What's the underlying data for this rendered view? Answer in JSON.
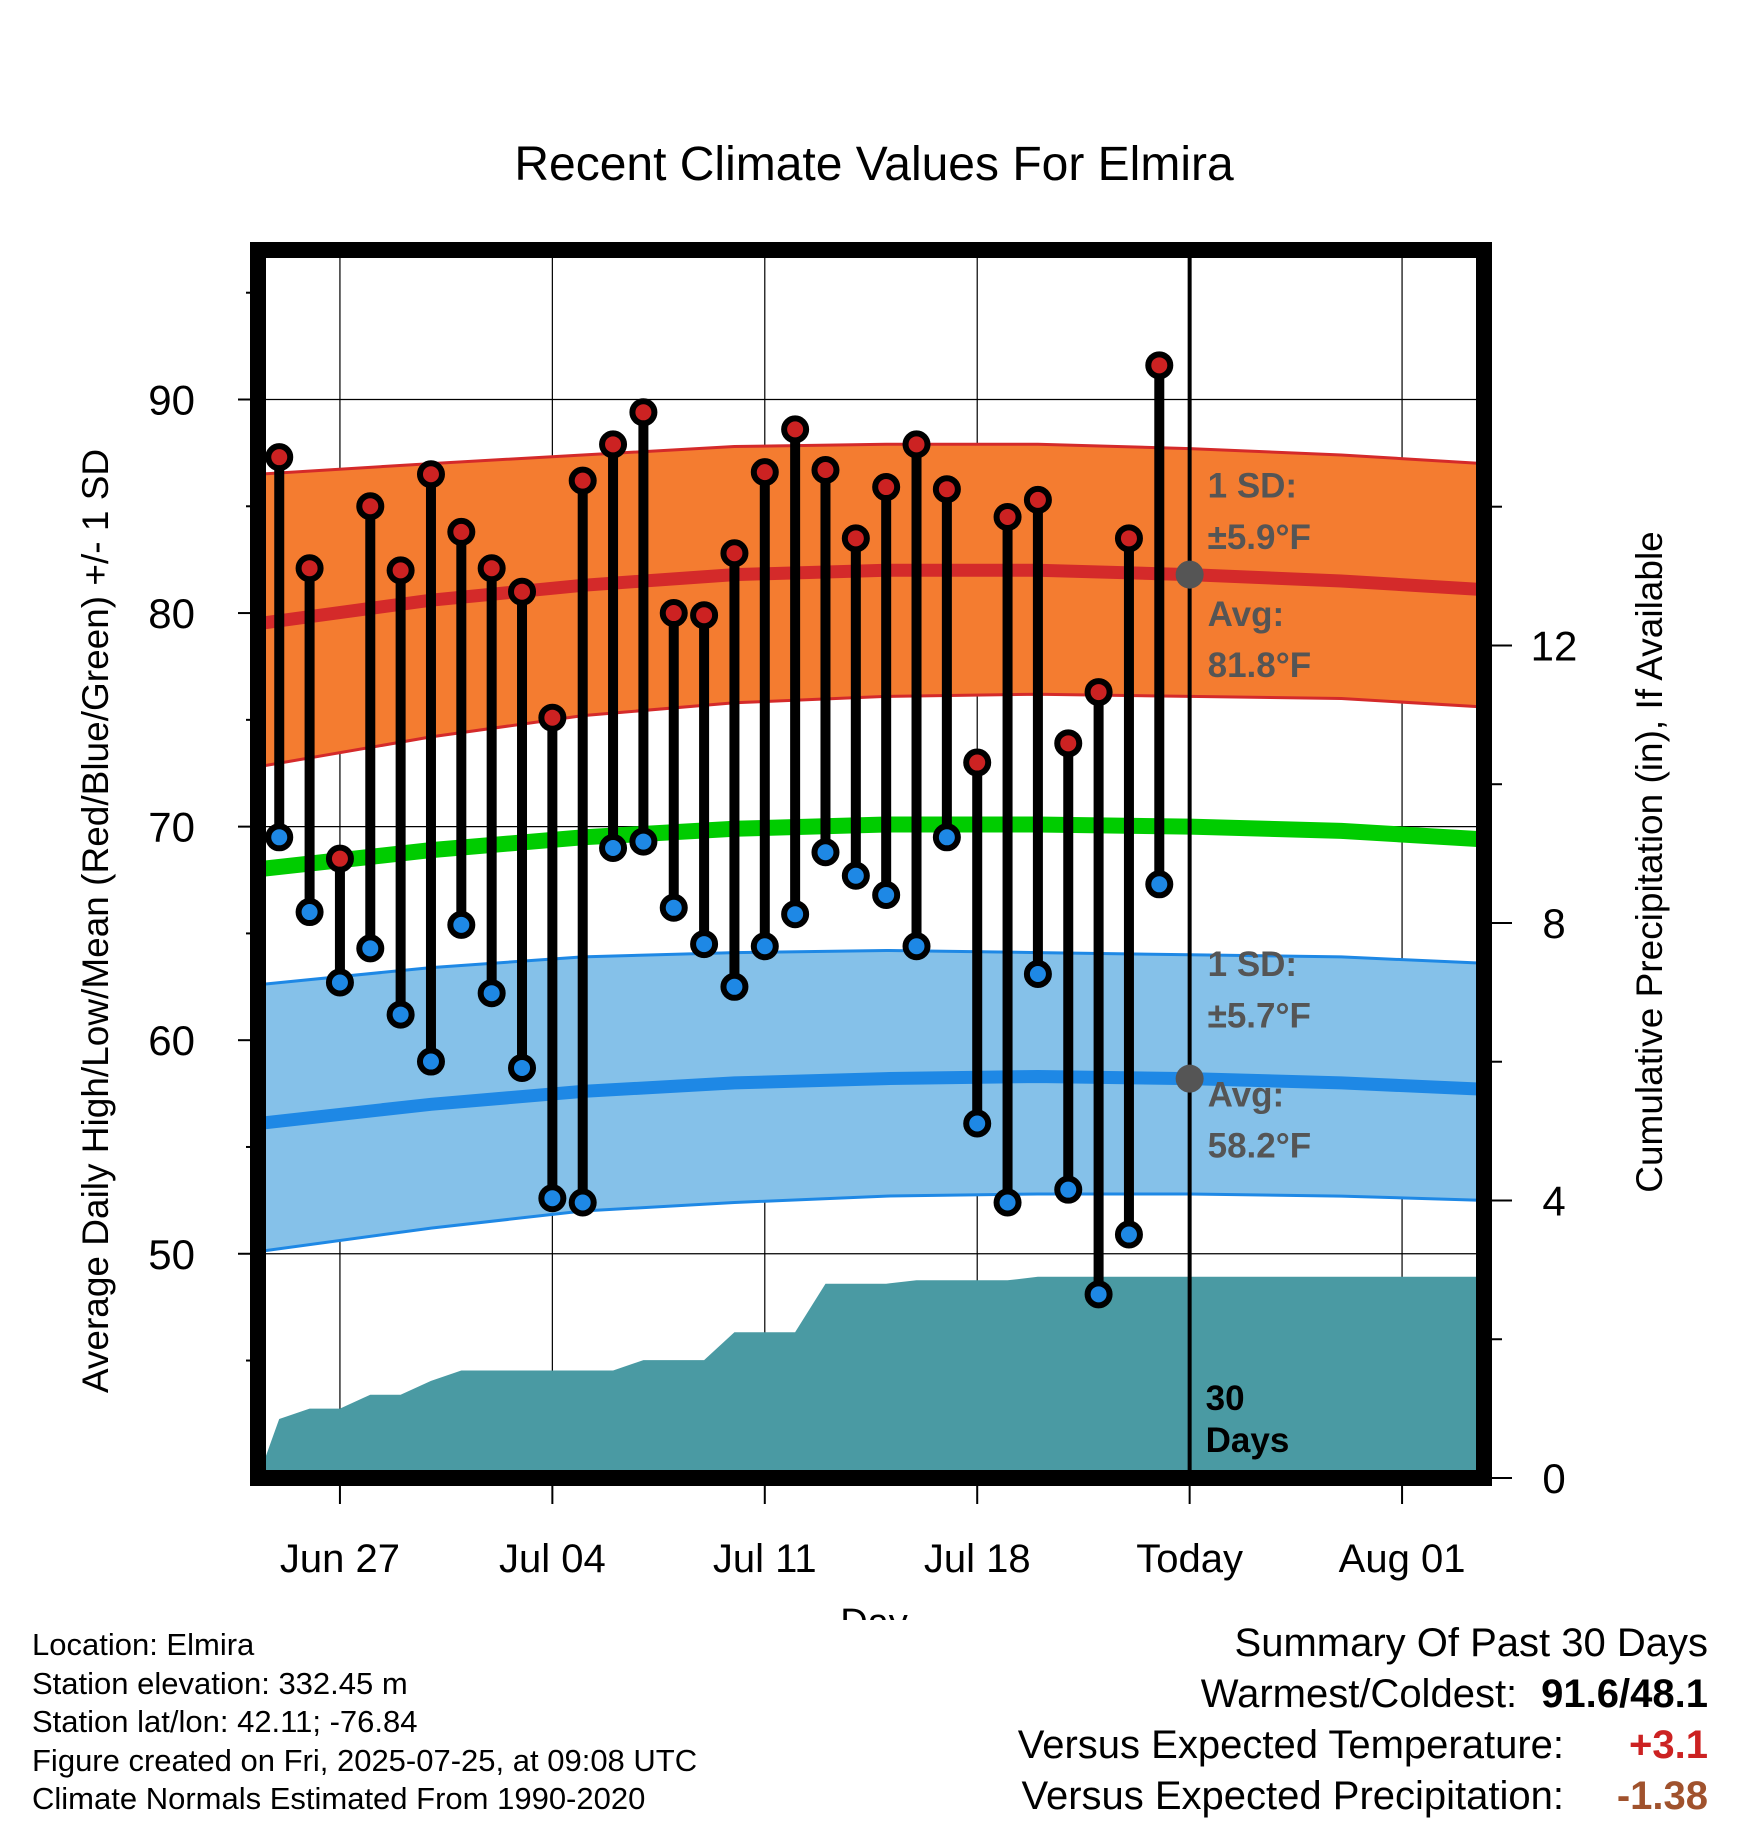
{
  "chart_data": {
    "type": "line",
    "title": "Recent Climate Values For Elmira",
    "xlabel": "Day",
    "ylabel": "Average Daily High/Low/Mean (Red/Blue/Green) +/- 1 SD",
    "y2label": "Cumulative Precipitation (in), If Available",
    "x_tick_labels": [
      "Jun 27",
      "Jul 04",
      "Jul 11",
      "Jul 18",
      "Today",
      "Aug 01"
    ],
    "x_tick_days": [
      2,
      9,
      16,
      23,
      30,
      37
    ],
    "xlim_days": [
      -0.7,
      39.7
    ],
    "today_day": 30,
    "ylim": [
      39.5,
      97
    ],
    "y_ticks": [
      50,
      60,
      70,
      80,
      90
    ],
    "y2lim": [
      0,
      17.7
    ],
    "y2_ticks": [
      0,
      4,
      8,
      12
    ],
    "days": [
      0,
      1,
      2,
      3,
      4,
      5,
      6,
      7,
      8,
      9,
      10,
      11,
      12,
      13,
      14,
      15,
      16,
      17,
      18,
      19,
      20,
      21,
      22,
      23,
      24,
      25,
      26,
      27,
      28,
      29
    ],
    "series": [
      {
        "name": "Daily High",
        "color": "#cc2222",
        "values": [
          87.3,
          82.1,
          68.5,
          85.0,
          82.0,
          86.5,
          83.8,
          82.1,
          81.0,
          75.1,
          86.2,
          87.9,
          89.4,
          80.0,
          79.9,
          82.8,
          86.6,
          88.6,
          86.7,
          83.5,
          85.9,
          87.9,
          85.8,
          73.0,
          84.5,
          85.3,
          73.9,
          76.3,
          83.5,
          91.6
        ]
      },
      {
        "name": "Daily Low",
        "color": "#1e88e5",
        "values": [
          69.5,
          66.0,
          62.7,
          64.3,
          61.2,
          59.0,
          65.4,
          62.2,
          58.7,
          52.6,
          52.4,
          69.0,
          69.3,
          66.2,
          64.5,
          62.5,
          64.4,
          65.9,
          68.8,
          67.7,
          66.8,
          64.4,
          69.5,
          56.1,
          52.4,
          63.1,
          53.0,
          48.1,
          50.9,
          67.3
        ]
      }
    ],
    "normals": {
      "days": [
        -0.7,
        5,
        10,
        15,
        20,
        25,
        30,
        35,
        39.7
      ],
      "high_mean": [
        79.5,
        80.6,
        81.3,
        81.8,
        82.0,
        82.0,
        81.8,
        81.5,
        81.1
      ],
      "high_sd_upper": [
        86.5,
        87.0,
        87.4,
        87.8,
        87.9,
        87.9,
        87.7,
        87.4,
        87.0
      ],
      "high_sd_lower": [
        72.8,
        74.2,
        75.2,
        75.8,
        76.1,
        76.2,
        76.1,
        76.0,
        75.6
      ],
      "mean": [
        68.0,
        68.9,
        69.5,
        69.9,
        70.1,
        70.1,
        70.0,
        69.8,
        69.4
      ],
      "low_mean": [
        56.1,
        57.0,
        57.6,
        58.0,
        58.2,
        58.3,
        58.2,
        58.0,
        57.7
      ],
      "low_sd_upper": [
        62.6,
        63.4,
        63.9,
        64.1,
        64.2,
        64.1,
        64.0,
        63.9,
        63.6
      ],
      "low_sd_lower": [
        50.1,
        51.2,
        52.0,
        52.4,
        52.7,
        52.8,
        52.8,
        52.7,
        52.5
      ]
    },
    "precip": {
      "days": [
        -0.7,
        0,
        1,
        2,
        3,
        4,
        5,
        6,
        7,
        8,
        9,
        10,
        11,
        12,
        13,
        14,
        15,
        16,
        17,
        18,
        19,
        20,
        21,
        22,
        23,
        24,
        25,
        26,
        27,
        28,
        29,
        30,
        39.7
      ],
      "values": [
        0,
        0.85,
        1.0,
        1.0,
        1.2,
        1.2,
        1.4,
        1.55,
        1.55,
        1.55,
        1.55,
        1.55,
        1.55,
        1.7,
        1.7,
        1.7,
        2.1,
        2.1,
        2.1,
        2.8,
        2.8,
        2.8,
        2.85,
        2.85,
        2.85,
        2.85,
        2.9,
        2.9,
        2.9,
        2.9,
        2.9,
        2.9,
        2.9
      ]
    },
    "annotations": {
      "high_sd": "±5.9°F",
      "high_avg": "81.8°F",
      "low_sd": "±5.7°F",
      "low_avg": "58.2°F",
      "sd_label": "1 SD:",
      "avg_label": "Avg:",
      "days_count": "30",
      "days_word": "Days"
    },
    "colors": {
      "high_band": "#f47c30",
      "high_edge": "#d42a2a",
      "low_band": "#85c1e9",
      "low_edge": "#1e88e5",
      "mean_line": "#00cc00",
      "precip_fill": "#4a9aa3",
      "annotation_text": "#555555",
      "positive_anomaly": "#cc2222",
      "negative_anomaly": "#a0522d"
    }
  },
  "info": {
    "location": "Location: Elmira",
    "elevation": "Station elevation: 332.45 m",
    "latlon": "Station lat/lon: 42.11; -76.84",
    "created": "Figure created on Fri, 2025-07-25, at 09:08 UTC",
    "normals": "Climate Normals Estimated From 1990-2020"
  },
  "summary": {
    "title": "Summary Of Past 30 Days",
    "warmest_label": "Warmest/Coldest:",
    "warmest_value": "91.6/48.1",
    "temp_label": "Versus Expected Temperature:",
    "temp_value": "+3.1",
    "precip_label": "Versus Expected Precipitation:",
    "precip_value": "-1.38"
  }
}
